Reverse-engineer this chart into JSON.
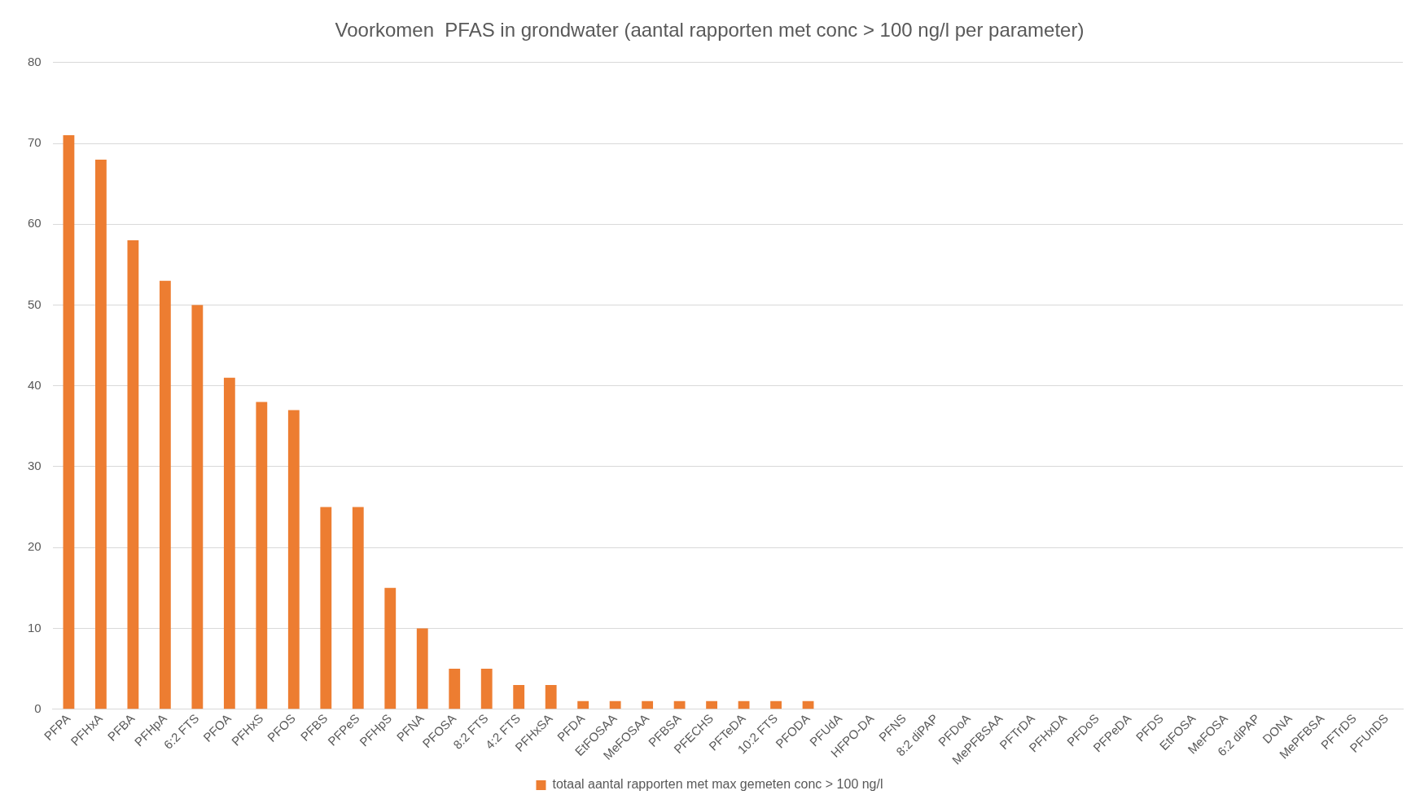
{
  "chart_data": {
    "type": "bar",
    "title": "Voorkomen  PFAS in grondwater (aantal rapporten met conc > 100 ng/l per parameter)",
    "categories": [
      "PFPA",
      "PFHxA",
      "PFBA",
      "PFHpA",
      "6:2 FTS",
      "PFOA",
      "PFHxS",
      "PFOS",
      "PFBS",
      "PFPeS",
      "PFHpS",
      "PFNA",
      "PFOSA",
      "8:2 FTS",
      "4:2 FTS",
      "PFHxSA",
      "PFDA",
      "EtFOSAA",
      "MeFOSAA",
      "PFBSA",
      "PFECHS",
      "PFTeDA",
      "10:2 FTS",
      "PFODA",
      "PFUdA",
      "HFPO-DA",
      "PFNS",
      "8:2 diPAP",
      "PFDoA",
      "MePFBSAA",
      "PFTrDA",
      "PFHxDA",
      "PFDoS",
      "PFPeDA",
      "PFDS",
      "EtFOSA",
      "MeFOSA",
      "6:2 diPAP",
      "DONA",
      "MePFBSA",
      "PFTrDS",
      "PFUnDS"
    ],
    "series": [
      {
        "name": "totaal aantal rapporten met max gemeten conc > 100 ng/l",
        "color": "#ed7d31",
        "values": [
          71,
          68,
          58,
          53,
          50,
          41,
          38,
          37,
          25,
          25,
          15,
          10,
          5,
          5,
          3,
          3,
          1,
          1,
          1,
          1,
          1,
          1,
          1,
          1,
          0,
          0,
          0,
          0,
          0,
          0,
          0,
          0,
          0,
          0,
          0,
          0,
          0,
          0,
          0,
          0,
          0,
          0
        ]
      }
    ],
    "ylim": [
      0,
      80
    ],
    "yticks": [
      0,
      10,
      20,
      30,
      40,
      50,
      60,
      70,
      80
    ],
    "grid": "y",
    "legend": "bottom"
  }
}
